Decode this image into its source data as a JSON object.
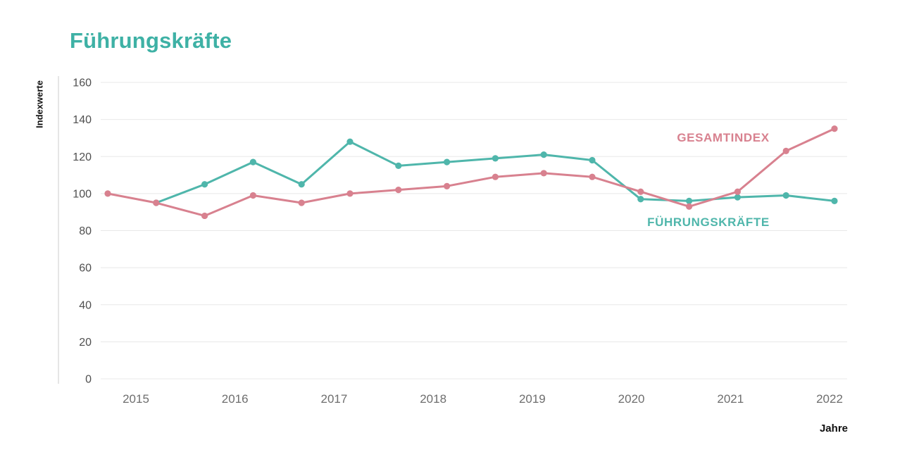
{
  "page": {
    "background_color": "#ffffff",
    "text_color": "#111111"
  },
  "chart_data": {
    "type": "line",
    "title": "Führungskräfte",
    "title_color": "#3eb1a5",
    "xlabel": "Jahre",
    "ylabel": "Indexwerte",
    "ylim": [
      0,
      160
    ],
    "yticks": [
      0,
      20,
      40,
      60,
      80,
      100,
      120,
      140,
      160
    ],
    "x_tick_labels": [
      "2015",
      "2016",
      "2017",
      "2018",
      "2019",
      "2020",
      "2021",
      "2022"
    ],
    "points_per_x_label": 2,
    "grid": "horizontal-only",
    "gridline_color": "#e8e8e8",
    "axis_line_color": "#dddddd",
    "legend": "inline-series-labels",
    "series": [
      {
        "name": "GESAMTINDEX",
        "color": "#d8818f",
        "values": [
          100,
          95,
          88,
          99,
          95,
          100,
          102,
          104,
          109,
          111,
          109,
          101,
          93,
          101,
          123,
          135
        ]
      },
      {
        "name": "FÜHRUNGSKRÄFTE",
        "color": "#4fb6ab",
        "values": [
          null,
          95,
          105,
          117,
          105,
          128,
          115,
          117,
          119,
          121,
          118,
          97,
          96,
          98,
          99,
          96
        ]
      }
    ]
  }
}
